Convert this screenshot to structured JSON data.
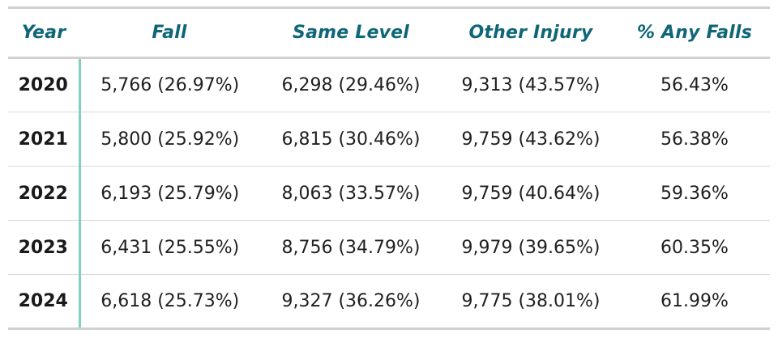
{
  "table": {
    "headers": [
      "Year",
      "Fall",
      "Same Level",
      "Other Injury",
      "% Any Falls"
    ],
    "rows": [
      [
        "2020",
        "5,766 (26.97%)",
        "6,298 (29.46%)",
        "9,313 (43.57%)",
        "56.43%"
      ],
      [
        "2021",
        "5,800 (25.92%)",
        "6,815 (30.46%)",
        "9,759 (43.62%)",
        "56.38%"
      ],
      [
        "2022",
        "6,193 (25.79%)",
        "8,063 (33.57%)",
        "9,759 (40.64%)",
        "59.36%"
      ],
      [
        "2023",
        "6,431 (25.55%)",
        "8,756 (34.79%)",
        "9,979 (39.65%)",
        "60.35%"
      ],
      [
        "2024",
        "6,618 (25.73%)",
        "9,327 (36.26%)",
        "9,775 (38.01%)",
        "61.99%"
      ]
    ]
  },
  "colors": {
    "header_text": "#0f6677",
    "year_divider": "#7fd1c2",
    "rule": "#d0d0d0"
  }
}
